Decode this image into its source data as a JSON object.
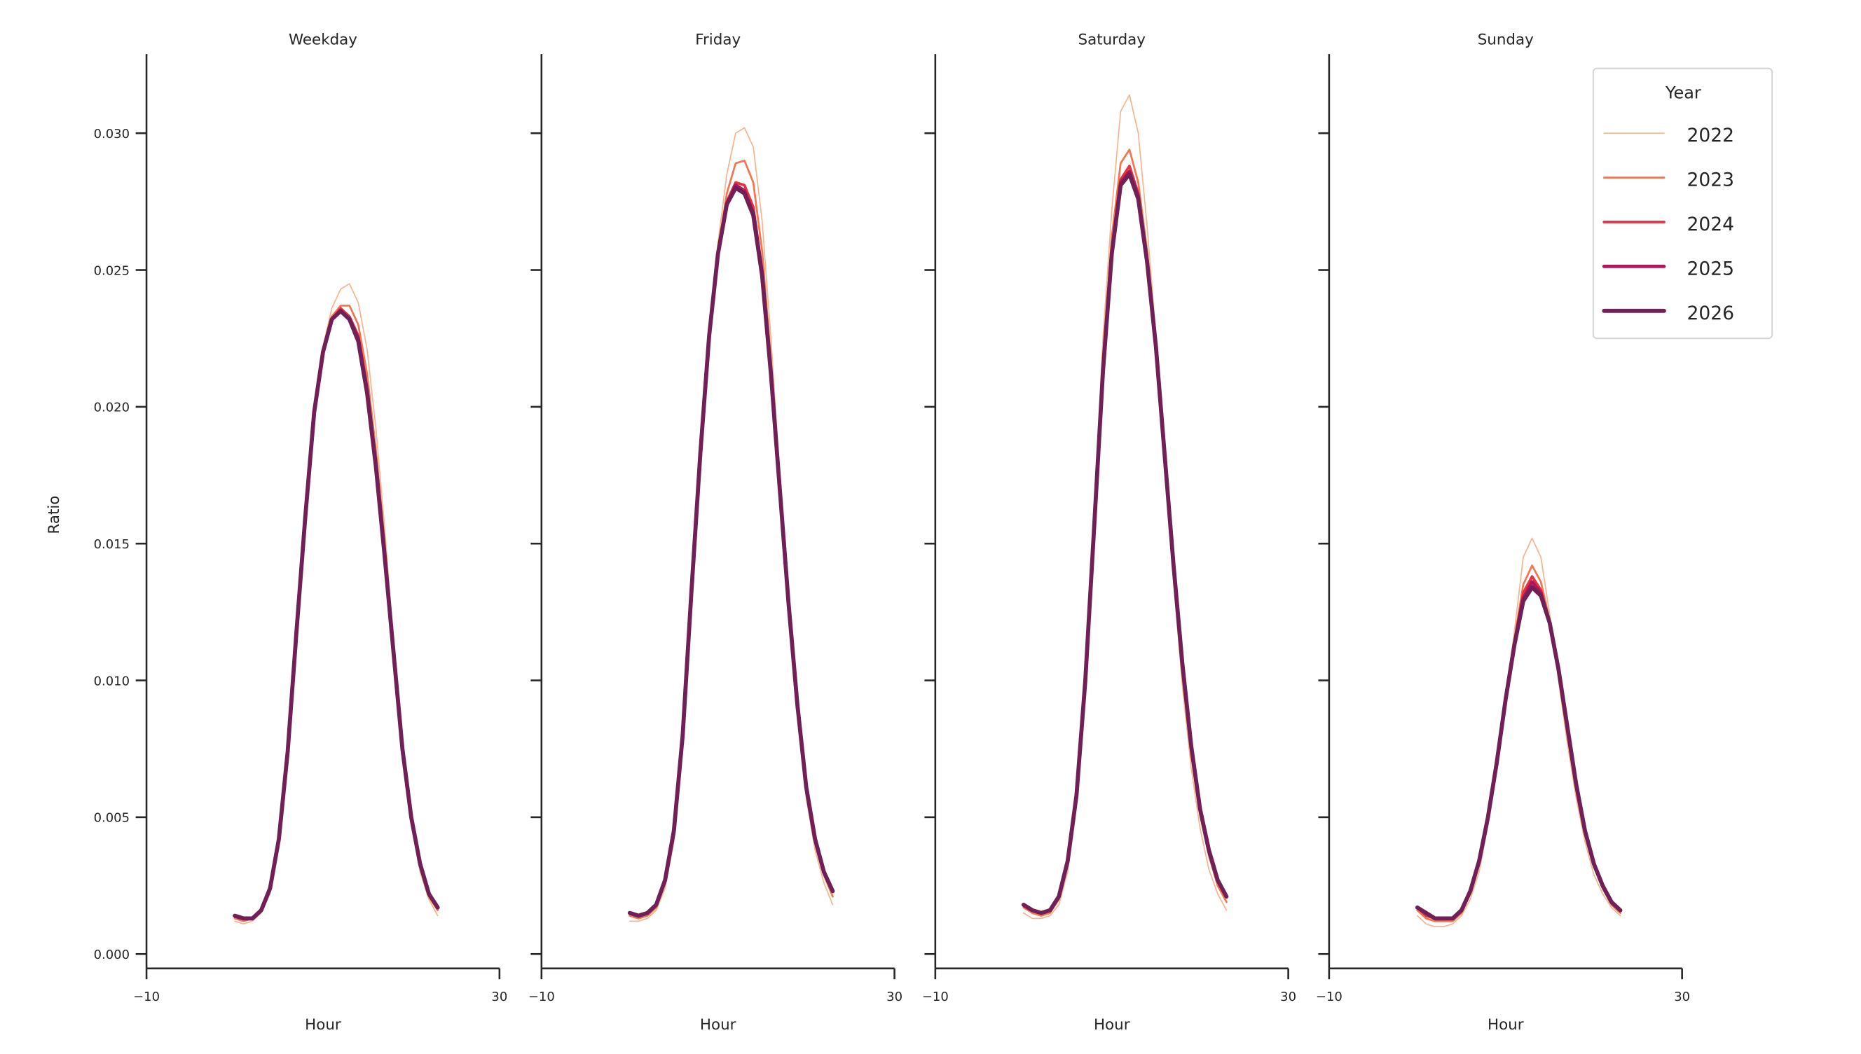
{
  "figure": {
    "ylabel": "Ratio",
    "xlabel": "Hour",
    "legend": {
      "title": "Year",
      "entries": [
        {
          "label": "2022",
          "color": "#f6b48f",
          "width": 1.0
        },
        {
          "label": "2023",
          "color": "#f37651",
          "width": 1.6
        },
        {
          "label": "2024",
          "color": "#e13342",
          "width": 2.2
        },
        {
          "label": "2025",
          "color": "#ad1759",
          "width": 2.8
        },
        {
          "label": "2026",
          "color": "#701f57",
          "width": 3.4
        }
      ]
    },
    "y_ticks": [
      "0.000",
      "0.005",
      "0.010",
      "0.015",
      "0.020",
      "0.025",
      "0.030"
    ],
    "x_ticks": [
      "−10",
      "30"
    ],
    "panels": [
      {
        "title": "Weekday"
      },
      {
        "title": "Friday"
      },
      {
        "title": "Saturday"
      },
      {
        "title": "Sunday"
      }
    ]
  },
  "chart_data": {
    "type": "line",
    "title": "",
    "xlabel": "Hour",
    "ylabel": "Ratio",
    "xlim": [
      -10,
      30
    ],
    "ylim": [
      -0.0005,
      0.033
    ],
    "x_ticks": [
      -10,
      30
    ],
    "y_ticks": [
      0.0,
      0.005,
      0.01,
      0.015,
      0.02,
      0.025,
      0.03
    ],
    "grid": false,
    "legend_title": "Year",
    "legend_position": "upper right",
    "x": [
      0,
      1,
      2,
      3,
      4,
      5,
      6,
      7,
      8,
      9,
      10,
      11,
      12,
      13,
      14,
      15,
      16,
      17,
      18,
      19,
      20,
      21,
      22,
      23
    ],
    "facets": [
      {
        "title": "Weekday",
        "series": [
          {
            "name": "2022",
            "values": [
              0.0012,
              0.0011,
              0.0012,
              0.0015,
              0.0022,
              0.0039,
              0.0071,
              0.0115,
              0.0158,
              0.0198,
              0.0222,
              0.0236,
              0.0243,
              0.0245,
              0.0238,
              0.0221,
              0.0192,
              0.0155,
              0.0114,
              0.0076,
              0.0048,
              0.003,
              0.002,
              0.0014
            ]
          },
          {
            "name": "2023",
            "values": [
              0.0013,
              0.0012,
              0.0013,
              0.0016,
              0.0023,
              0.0041,
              0.0073,
              0.0117,
              0.016,
              0.0198,
              0.0221,
              0.0233,
              0.0237,
              0.0237,
              0.023,
              0.0212,
              0.0184,
              0.015,
              0.0112,
              0.0076,
              0.0049,
              0.0032,
              0.0021,
              0.0016
            ]
          },
          {
            "name": "2024",
            "values": [
              0.0014,
              0.0013,
              0.0013,
              0.0016,
              0.0024,
              0.0042,
              0.0074,
              0.0118,
              0.016,
              0.0198,
              0.022,
              0.0232,
              0.0236,
              0.0233,
              0.0226,
              0.0207,
              0.018,
              0.0146,
              0.011,
              0.0075,
              0.005,
              0.0033,
              0.0022,
              0.0017
            ]
          },
          {
            "name": "2025",
            "values": [
              0.0014,
              0.0013,
              0.0013,
              0.0016,
              0.0024,
              0.0042,
              0.0074,
              0.0118,
              0.016,
              0.0198,
              0.022,
              0.0232,
              0.0235,
              0.0232,
              0.0225,
              0.0206,
              0.0179,
              0.0146,
              0.011,
              0.0075,
              0.005,
              0.0033,
              0.0022,
              0.0017
            ]
          },
          {
            "name": "2026",
            "values": [
              0.0014,
              0.0013,
              0.0013,
              0.0016,
              0.0024,
              0.0042,
              0.0074,
              0.0118,
              0.016,
              0.0198,
              0.022,
              0.0232,
              0.0235,
              0.0232,
              0.0224,
              0.0205,
              0.0178,
              0.0145,
              0.011,
              0.0075,
              0.005,
              0.0033,
              0.0022,
              0.0017
            ]
          }
        ]
      },
      {
        "title": "Friday",
        "series": [
          {
            "name": "2022",
            "values": [
              0.0012,
              0.0012,
              0.0013,
              0.0016,
              0.0024,
              0.0041,
              0.0075,
              0.0128,
              0.018,
              0.0226,
              0.026,
              0.0285,
              0.03,
              0.0302,
              0.0295,
              0.0268,
              0.0225,
              0.0175,
              0.0127,
              0.0087,
              0.0057,
              0.0038,
              0.0026,
              0.0018
            ]
          },
          {
            "name": "2023",
            "values": [
              0.0014,
              0.0013,
              0.0014,
              0.0017,
              0.0026,
              0.0044,
              0.0079,
              0.0131,
              0.0182,
              0.0226,
              0.0257,
              0.0278,
              0.0289,
              0.029,
              0.0282,
              0.0257,
              0.0217,
              0.0172,
              0.0128,
              0.009,
              0.006,
              0.0041,
              0.0029,
              0.0021
            ]
          },
          {
            "name": "2024",
            "values": [
              0.0015,
              0.0014,
              0.0015,
              0.0018,
              0.0027,
              0.0045,
              0.008,
              0.0133,
              0.0183,
              0.0226,
              0.0256,
              0.0275,
              0.0282,
              0.0281,
              0.0273,
              0.025,
              0.0213,
              0.0171,
              0.0128,
              0.0091,
              0.0061,
              0.0042,
              0.003,
              0.0023
            ]
          },
          {
            "name": "2025",
            "values": [
              0.0015,
              0.0014,
              0.0015,
              0.0018,
              0.0027,
              0.0045,
              0.008,
              0.0133,
              0.0183,
              0.0226,
              0.0256,
              0.0274,
              0.0281,
              0.0279,
              0.0271,
              0.0249,
              0.0212,
              0.017,
              0.0128,
              0.0091,
              0.0061,
              0.0042,
              0.003,
              0.0023
            ]
          },
          {
            "name": "2026",
            "values": [
              0.0015,
              0.0014,
              0.0015,
              0.0018,
              0.0027,
              0.0045,
              0.008,
              0.0133,
              0.0183,
              0.0226,
              0.0256,
              0.0274,
              0.028,
              0.0278,
              0.027,
              0.0248,
              0.0212,
              0.017,
              0.0128,
              0.0091,
              0.0061,
              0.0042,
              0.003,
              0.0023
            ]
          }
        ]
      },
      {
        "title": "Saturday",
        "series": [
          {
            "name": "2022",
            "values": [
              0.0015,
              0.0013,
              0.0013,
              0.0014,
              0.0018,
              0.003,
              0.0054,
              0.0098,
              0.016,
              0.0225,
              0.0272,
              0.0308,
              0.0314,
              0.03,
              0.0266,
              0.0226,
              0.018,
              0.0136,
              0.0098,
              0.0068,
              0.0046,
              0.0031,
              0.0022,
              0.0016
            ]
          },
          {
            "name": "2023",
            "values": [
              0.0017,
              0.0015,
              0.0014,
              0.0015,
              0.002,
              0.0033,
              0.0057,
              0.01,
              0.0158,
              0.0217,
              0.0262,
              0.0289,
              0.0294,
              0.0282,
              0.0257,
              0.0223,
              0.0181,
              0.014,
              0.0103,
              0.0073,
              0.0051,
              0.0036,
              0.0025,
              0.0019
            ]
          },
          {
            "name": "2024",
            "values": [
              0.0018,
              0.0016,
              0.0015,
              0.0016,
              0.0021,
              0.0034,
              0.0058,
              0.01,
              0.0156,
              0.0214,
              0.0257,
              0.0283,
              0.0288,
              0.0278,
              0.0254,
              0.0222,
              0.0182,
              0.0142,
              0.0105,
              0.0075,
              0.0053,
              0.0038,
              0.0027,
              0.0021
            ]
          },
          {
            "name": "2025",
            "values": [
              0.0018,
              0.0016,
              0.0015,
              0.0016,
              0.0021,
              0.0034,
              0.0058,
              0.01,
              0.0156,
              0.0213,
              0.0256,
              0.0282,
              0.0286,
              0.0277,
              0.0253,
              0.0222,
              0.0182,
              0.0142,
              0.0106,
              0.0076,
              0.0053,
              0.0038,
              0.0027,
              0.0021
            ]
          },
          {
            "name": "2026",
            "values": [
              0.0018,
              0.0016,
              0.0015,
              0.0016,
              0.0021,
              0.0034,
              0.0058,
              0.01,
              0.0156,
              0.0213,
              0.0256,
              0.0281,
              0.0285,
              0.0276,
              0.0253,
              0.0222,
              0.0182,
              0.0142,
              0.0106,
              0.0076,
              0.0053,
              0.0038,
              0.0027,
              0.0021
            ]
          }
        ]
      },
      {
        "title": "Sunday",
        "series": [
          {
            "name": "2022",
            "values": [
              0.0014,
              0.0011,
              0.001,
              0.001,
              0.0011,
              0.0014,
              0.002,
              0.003,
              0.0047,
              0.0068,
              0.0093,
              0.0118,
              0.0145,
              0.0152,
              0.0145,
              0.0124,
              0.01,
              0.0077,
              0.0057,
              0.0041,
              0.0029,
              0.0022,
              0.0017,
              0.0014
            ]
          },
          {
            "name": "2023",
            "values": [
              0.0016,
              0.0013,
              0.0012,
              0.0012,
              0.0012,
              0.0015,
              0.0022,
              0.0033,
              0.0049,
              0.007,
              0.0093,
              0.0115,
              0.0135,
              0.0142,
              0.0136,
              0.0122,
              0.0102,
              0.008,
              0.006,
              0.0044,
              0.0032,
              0.0024,
              0.0018,
              0.0015
            ]
          },
          {
            "name": "2024",
            "values": [
              0.0017,
              0.0014,
              0.0013,
              0.0013,
              0.0013,
              0.0016,
              0.0023,
              0.0034,
              0.005,
              0.007,
              0.0093,
              0.0114,
              0.0132,
              0.0138,
              0.0133,
              0.0121,
              0.0103,
              0.0082,
              0.0062,
              0.0045,
              0.0033,
              0.0025,
              0.0019,
              0.0016
            ]
          },
          {
            "name": "2025",
            "values": [
              0.0017,
              0.0015,
              0.0013,
              0.0013,
              0.0013,
              0.0016,
              0.0023,
              0.0034,
              0.005,
              0.007,
              0.0093,
              0.0113,
              0.013,
              0.0136,
              0.0132,
              0.0121,
              0.0104,
              0.0083,
              0.0062,
              0.0045,
              0.0033,
              0.0025,
              0.0019,
              0.0016
            ]
          },
          {
            "name": "2026",
            "values": [
              0.0017,
              0.0015,
              0.0013,
              0.0013,
              0.0013,
              0.0016,
              0.0023,
              0.0034,
              0.005,
              0.007,
              0.0093,
              0.0113,
              0.0129,
              0.0134,
              0.0131,
              0.0121,
              0.0104,
              0.0083,
              0.0062,
              0.0045,
              0.0033,
              0.0025,
              0.0019,
              0.0016
            ]
          }
        ]
      }
    ]
  }
}
